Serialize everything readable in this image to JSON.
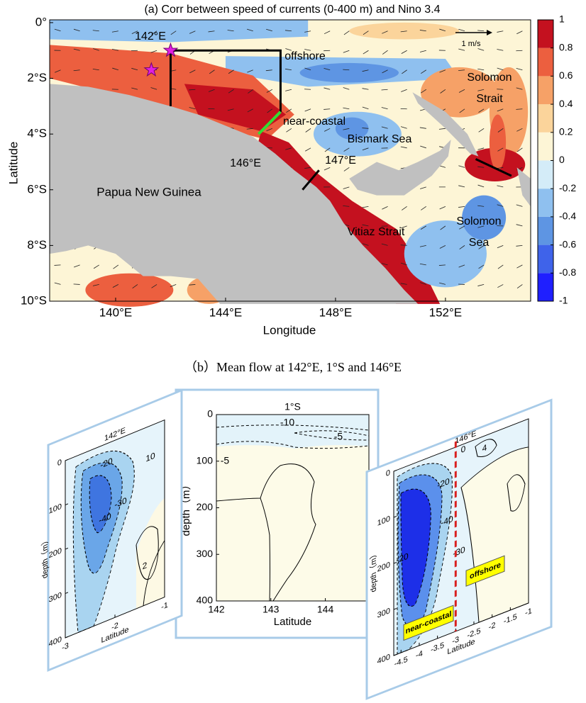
{
  "panel_a": {
    "title": "(a) Corr between speed of currents (0-400 m) and Nino 3.4",
    "xlabel": "Longitude",
    "ylabel": "Latitude",
    "xlim": [
      137.6,
      155.1
    ],
    "ylim": [
      -10,
      0.1
    ],
    "xticks": [
      {
        "value": 140,
        "label": "140°E"
      },
      {
        "value": 144,
        "label": "144°E"
      },
      {
        "value": 148,
        "label": "148°E"
      },
      {
        "value": 152,
        "label": "152°E"
      }
    ],
    "yticks": [
      {
        "value": 0,
        "label": "0°"
      },
      {
        "value": -2,
        "label": "2°S"
      },
      {
        "value": -4,
        "label": "4°S"
      },
      {
        "value": -6,
        "label": "6°S"
      },
      {
        "value": -8,
        "label": "8°S"
      },
      {
        "value": -10,
        "label": "10°S"
      }
    ],
    "colorbar": {
      "lim": [
        -1,
        1
      ],
      "ticks": [
        1,
        0.8,
        0.6,
        0.4,
        0.2,
        0,
        -0.2,
        -0.4,
        -0.6,
        -0.8,
        -1
      ],
      "colors": [
        "#1f1fff",
        "#3f63ea",
        "#5e95e3",
        "#8fc0ef",
        "#d4ecf8",
        "#fdf5d6",
        "#fbd49b",
        "#f6a167",
        "#ec5f3f",
        "#c4111f"
      ]
    },
    "land_color": "#c0c0c0",
    "annotations": {
      "lon142": "142°E",
      "offshore": "offshore",
      "near_coastal": "near-coastal",
      "bismark": "Bismark Sea",
      "lon146": "146°E",
      "lon147": "147°E",
      "png": "Papua New Guinea",
      "vitiaz": "Vitiaz Strait",
      "solomon_strait": [
        "Solomon",
        "Strait"
      ],
      "solomon_sea": [
        "Solomon",
        "Sea"
      ],
      "scale": "1 m/s"
    }
  },
  "caption_b": "（b）Mean flow at 142°E, 1°S and 146°E",
  "panel_b": {
    "middle": {
      "title": "1°S",
      "xlabel": "Latitude",
      "ylabel": "depth（m）",
      "xlim": [
        142,
        144.8
      ],
      "xticks": [
        142,
        143,
        144
      ],
      "ylim": [
        0,
        400
      ],
      "yticks": [
        0,
        100,
        200,
        300,
        400
      ],
      "contour_labels": [
        -10,
        -5,
        -5
      ]
    },
    "left": {
      "title": "142°E",
      "xlabel": "Latitude",
      "ylabel": "depth（m）",
      "xlim": [
        -3,
        -1
      ],
      "xticks": [
        -3,
        -2,
        -1
      ],
      "ylim": [
        0,
        400
      ],
      "yticks": [
        0,
        100,
        200,
        300,
        400
      ],
      "contour_labels": [
        -20,
        -40,
        -30,
        10,
        2
      ]
    },
    "right": {
      "title": "146°E",
      "xlabel": "Latitude",
      "ylabel": "depth（m）",
      "xlim": [
        -4.7,
        -1
      ],
      "xticks": [
        -4.5,
        -4,
        -3.5,
        -3,
        -2.5,
        -2,
        -1.5,
        -1
      ],
      "ylim": [
        0,
        400
      ],
      "yticks": [
        0,
        100,
        200,
        300,
        400
      ],
      "contour_labels": [
        -20,
        -40,
        -30,
        -20,
        0,
        4
      ],
      "region_labels": [
        "near-coastal",
        "offshore"
      ]
    }
  }
}
